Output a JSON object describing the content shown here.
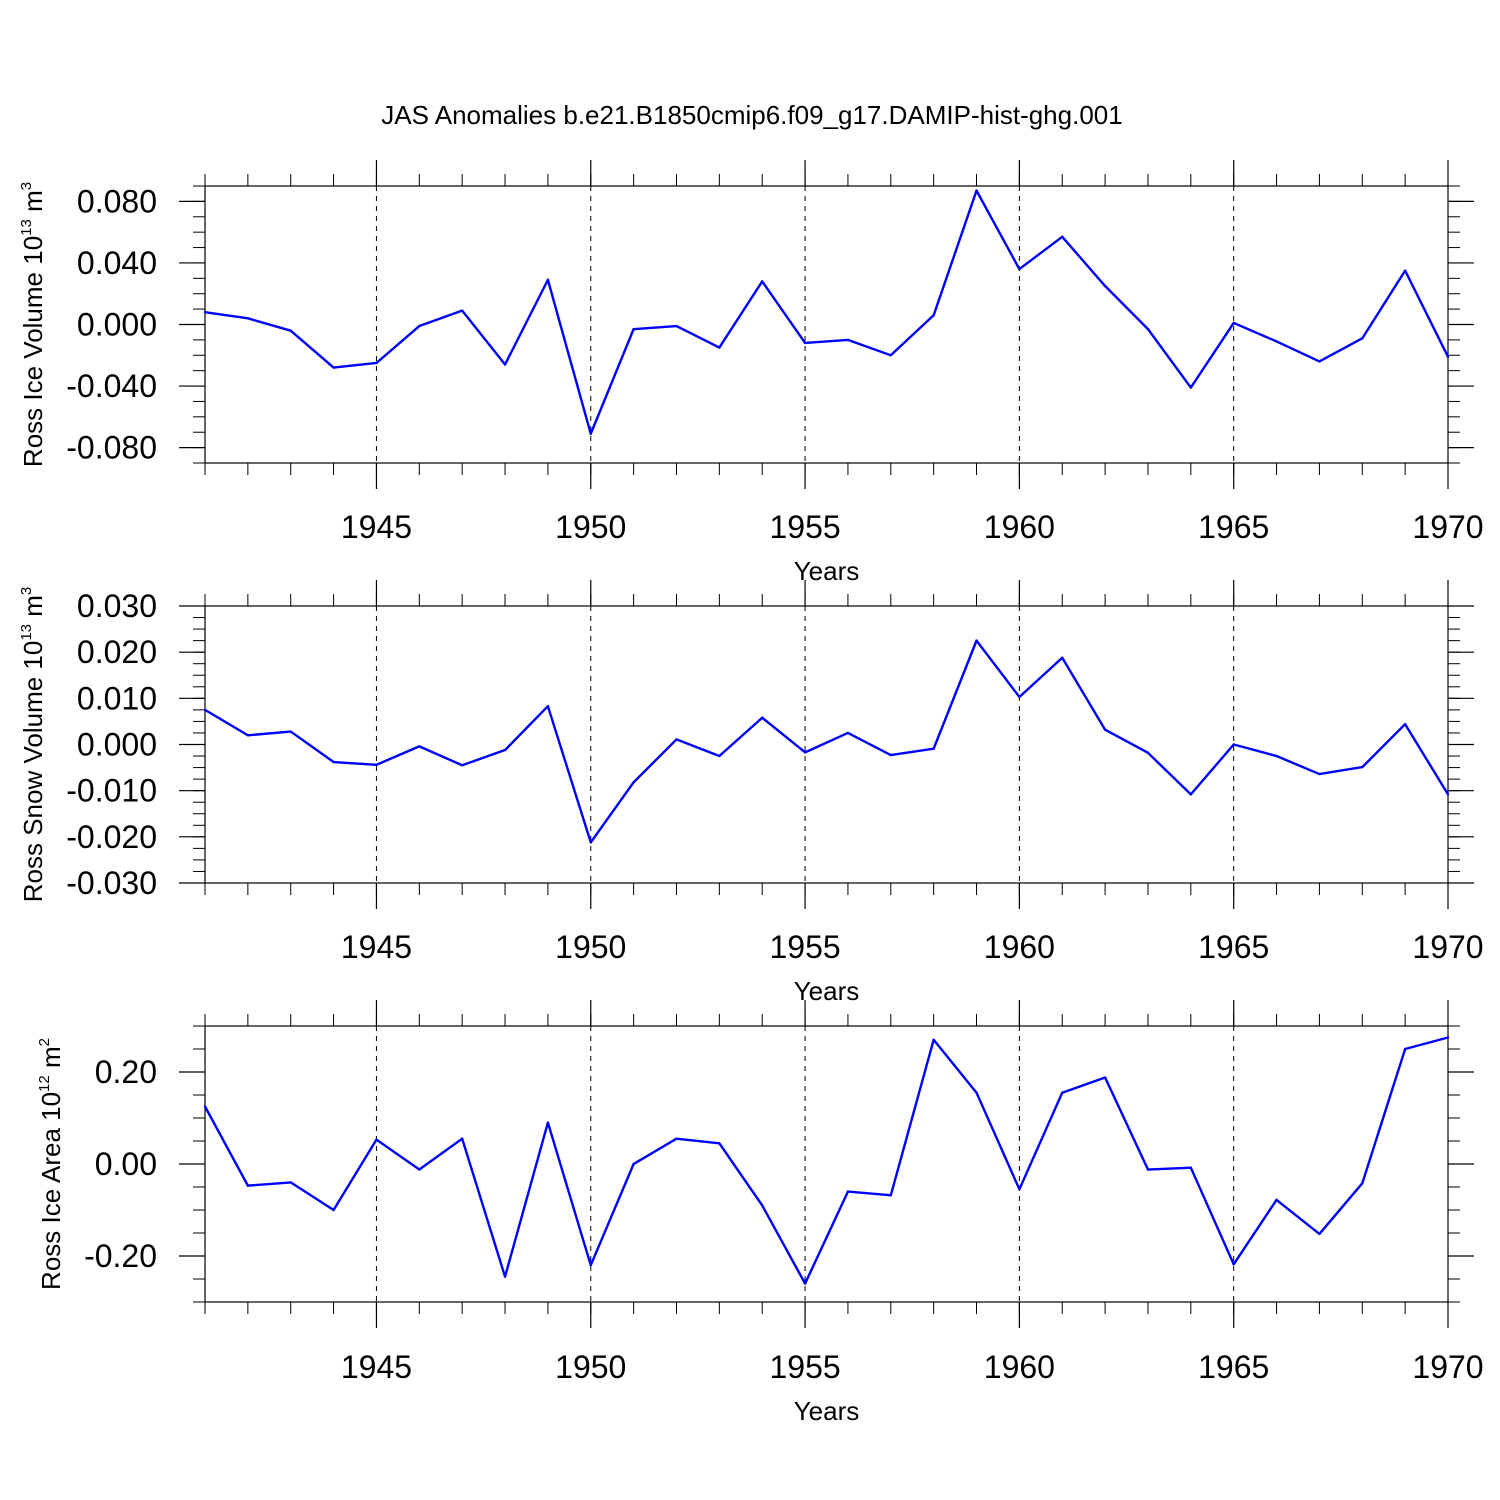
{
  "chart_data": [
    {
      "type": "line",
      "title": "JAS Anomalies b.e21.B1850cmip6.f09_g17.DAMIP-hist-ghg.001",
      "xlabel": "Years",
      "ylabel": {
        "base": "Ross Ice Volume 10",
        "exp": "13",
        "unit": " m",
        "unit_exp": "3"
      },
      "xlim": [
        1941,
        1970
      ],
      "ylim": [
        -0.09,
        0.09
      ],
      "x_ticks": [
        1945,
        1950,
        1955,
        1960,
        1965,
        1970
      ],
      "x_tick_labels": [
        "1945",
        "1950",
        "1955",
        "1960",
        "1965",
        "1970"
      ],
      "y_ticks": [
        0.08,
        0.04,
        0.0,
        -0.04,
        -0.08
      ],
      "y_tick_labels": [
        "0.080",
        "0.040",
        "0.000",
        "-0.040",
        "-0.080"
      ],
      "y_minor_step": 0.01,
      "grid": "dashed vertical at major x ticks",
      "series": [
        {
          "name": "Ross Ice Volume",
          "color": "#0000ff",
          "x": [
            1941,
            1942,
            1943,
            1944,
            1945,
            1946,
            1947,
            1948,
            1949,
            1950,
            1951,
            1952,
            1953,
            1954,
            1955,
            1956,
            1957,
            1958,
            1959,
            1960,
            1961,
            1962,
            1963,
            1964,
            1965,
            1966,
            1967,
            1968,
            1969,
            1970
          ],
          "values": [
            0.008,
            0.004,
            -0.004,
            -0.028,
            -0.025,
            -0.001,
            0.009,
            -0.026,
            0.029,
            -0.071,
            -0.003,
            -0.001,
            -0.015,
            0.028,
            -0.012,
            -0.01,
            -0.02,
            0.006,
            0.087,
            0.036,
            0.057,
            0.025,
            -0.003,
            -0.041,
            0.001,
            -0.011,
            -0.024,
            -0.009,
            0.035,
            -0.021
          ]
        }
      ]
    },
    {
      "type": "line",
      "xlabel": "Years",
      "ylabel": {
        "base": "Ross Snow Volume 10",
        "exp": "13",
        "unit": " m",
        "unit_exp": "3"
      },
      "xlim": [
        1941,
        1970
      ],
      "ylim": [
        -0.03,
        0.03
      ],
      "x_ticks": [
        1945,
        1950,
        1955,
        1960,
        1965,
        1970
      ],
      "x_tick_labels": [
        "1945",
        "1950",
        "1955",
        "1960",
        "1965",
        "1970"
      ],
      "y_ticks": [
        0.03,
        0.02,
        0.01,
        0.0,
        -0.01,
        -0.02,
        -0.03
      ],
      "y_tick_labels": [
        "0.030",
        "0.020",
        "0.010",
        "0.000",
        "-0.010",
        "-0.020",
        "-0.030"
      ],
      "y_minor_step": 0.0025,
      "grid": "dashed vertical at major x ticks",
      "series": [
        {
          "name": "Ross Snow Volume",
          "color": "#0000ff",
          "x": [
            1941,
            1942,
            1943,
            1944,
            1945,
            1946,
            1947,
            1948,
            1949,
            1950,
            1951,
            1952,
            1953,
            1954,
            1955,
            1956,
            1957,
            1958,
            1959,
            1960,
            1961,
            1962,
            1963,
            1964,
            1965,
            1966,
            1967,
            1968,
            1969,
            1970
          ],
          "values": [
            0.0075,
            0.002,
            0.0028,
            -0.0038,
            -0.0044,
            -0.0004,
            -0.0045,
            -0.0012,
            0.0083,
            -0.0212,
            -0.0082,
            0.0011,
            -0.0025,
            0.0058,
            -0.0017,
            0.0025,
            -0.0023,
            -0.0009,
            0.0225,
            0.0103,
            0.0188,
            0.0032,
            -0.0018,
            -0.0108,
            0.0,
            -0.0025,
            -0.0064,
            -0.0049,
            0.0044,
            -0.0108
          ]
        }
      ]
    },
    {
      "type": "line",
      "xlabel": "Years",
      "ylabel": {
        "base": "Ross Ice Area 10",
        "exp": "12",
        "unit": " m",
        "unit_exp": "2"
      },
      "xlim": [
        1941,
        1970
      ],
      "ylim": [
        -0.3,
        0.3
      ],
      "x_ticks": [
        1945,
        1950,
        1955,
        1960,
        1965,
        1970
      ],
      "x_tick_labels": [
        "1945",
        "1950",
        "1955",
        "1960",
        "1965",
        "1970"
      ],
      "y_ticks": [
        0.2,
        0.0,
        -0.2
      ],
      "y_tick_labels": [
        "0.20",
        "0.00",
        "-0.20"
      ],
      "y_minor_step": 0.05,
      "grid": "dashed vertical at major x ticks",
      "series": [
        {
          "name": "Ross Ice Area",
          "color": "#0000ff",
          "x": [
            1941,
            1942,
            1943,
            1944,
            1945,
            1946,
            1947,
            1948,
            1949,
            1950,
            1951,
            1952,
            1953,
            1954,
            1955,
            1956,
            1957,
            1958,
            1959,
            1960,
            1961,
            1962,
            1963,
            1964,
            1965,
            1966,
            1967,
            1968,
            1969,
            1970
          ],
          "values": [
            0.125,
            -0.047,
            -0.04,
            -0.1,
            0.053,
            -0.012,
            0.055,
            -0.245,
            0.09,
            -0.22,
            0.0,
            0.055,
            0.045,
            -0.09,
            -0.26,
            -0.06,
            -0.068,
            0.27,
            0.155,
            -0.055,
            0.155,
            0.188,
            -0.012,
            -0.008,
            -0.218,
            -0.078,
            -0.152,
            -0.042,
            0.25,
            0.275
          ]
        }
      ]
    }
  ]
}
